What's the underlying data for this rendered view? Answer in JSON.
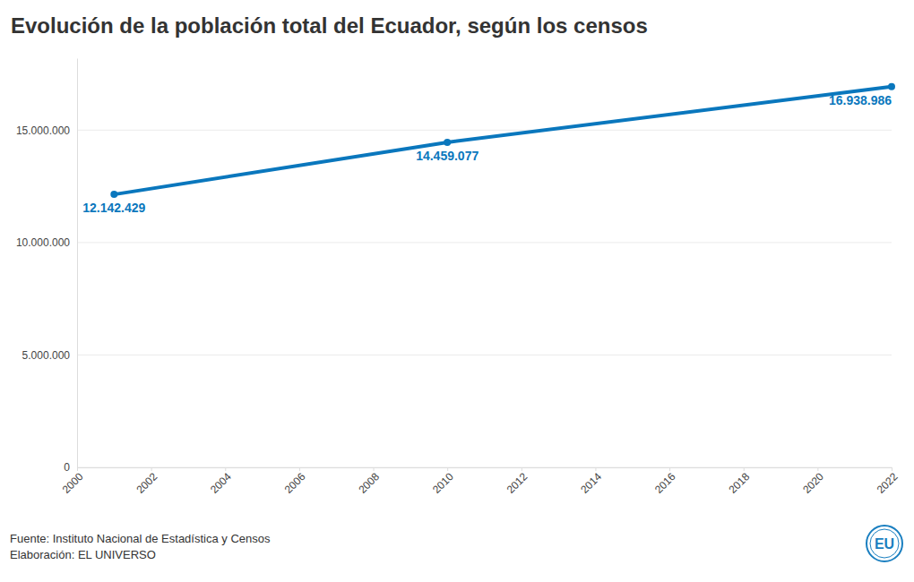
{
  "chart_data": {
    "type": "line",
    "title": "Evolución de la población total del Ecuador, según los censos",
    "x": [
      2001,
      2010,
      2022
    ],
    "values": [
      12142429,
      14459077,
      16938986
    ],
    "value_labels": [
      "12.142.429",
      "14.459.077",
      "16.938.986"
    ],
    "color": "#0a77bd",
    "marker": "circle",
    "line_style": "solid",
    "data_labels": true,
    "grid": true,
    "xlim": [
      2000,
      2022
    ],
    "xticks": [
      2000,
      2002,
      2004,
      2006,
      2008,
      2010,
      2012,
      2014,
      2016,
      2018,
      2020,
      2022
    ],
    "ylim": [
      0,
      18200000
    ],
    "yticks": [
      {
        "value": 0,
        "label": "0"
      },
      {
        "value": 5000000,
        "label": "5.000.000"
      },
      {
        "value": 10000000,
        "label": "10.000.000"
      },
      {
        "value": 15000000,
        "label": "15.000.000"
      }
    ],
    "source": "Fuente: Instituto Nacional de Estadística y Censos",
    "credit": "Elaboración: EL UNIVERSO",
    "logo": "EU"
  }
}
